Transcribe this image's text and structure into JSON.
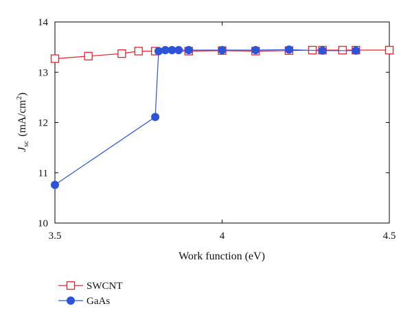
{
  "chart_data": {
    "type": "line",
    "xlabel": "Work function (eV)",
    "ylabel_main": "J",
    "ylabel_sub": "sc",
    "ylabel_unit": "(mA/cm",
    "ylabel_sup": "2",
    "ylabel_close": ")",
    "xlim": [
      3.5,
      4.5
    ],
    "ylim": [
      10,
      14
    ],
    "xticks": [
      3.5,
      4,
      4.5
    ],
    "xtick_labels": [
      "3.5",
      "4",
      "4.5"
    ],
    "yticks": [
      10,
      11,
      12,
      13,
      14
    ],
    "ytick_labels": [
      "10",
      "11",
      "12",
      "13",
      "14"
    ],
    "grid": false,
    "legend_position": "bottom-left",
    "series": [
      {
        "name": "SWCNT",
        "color": "#e8222a",
        "marker": "square-open",
        "x": [
          3.5,
          3.6,
          3.7,
          3.75,
          3.8,
          3.9,
          4.0,
          4.1,
          4.2,
          4.27,
          4.3,
          4.36,
          4.4,
          4.5
        ],
        "y": [
          13.27,
          13.32,
          13.37,
          13.42,
          13.42,
          13.42,
          13.43,
          13.42,
          13.43,
          13.44,
          13.44,
          13.44,
          13.44,
          13.44
        ]
      },
      {
        "name": "GaAs",
        "color": "#2b55d6",
        "marker": "circle-filled",
        "x": [
          3.5,
          3.8,
          3.81,
          3.83,
          3.85,
          3.87,
          3.9,
          4.0,
          4.1,
          4.2,
          4.3,
          4.4
        ],
        "y": [
          10.76,
          12.11,
          13.42,
          13.44,
          13.44,
          13.44,
          13.44,
          13.44,
          13.44,
          13.45,
          13.43,
          13.43
        ]
      }
    ]
  }
}
